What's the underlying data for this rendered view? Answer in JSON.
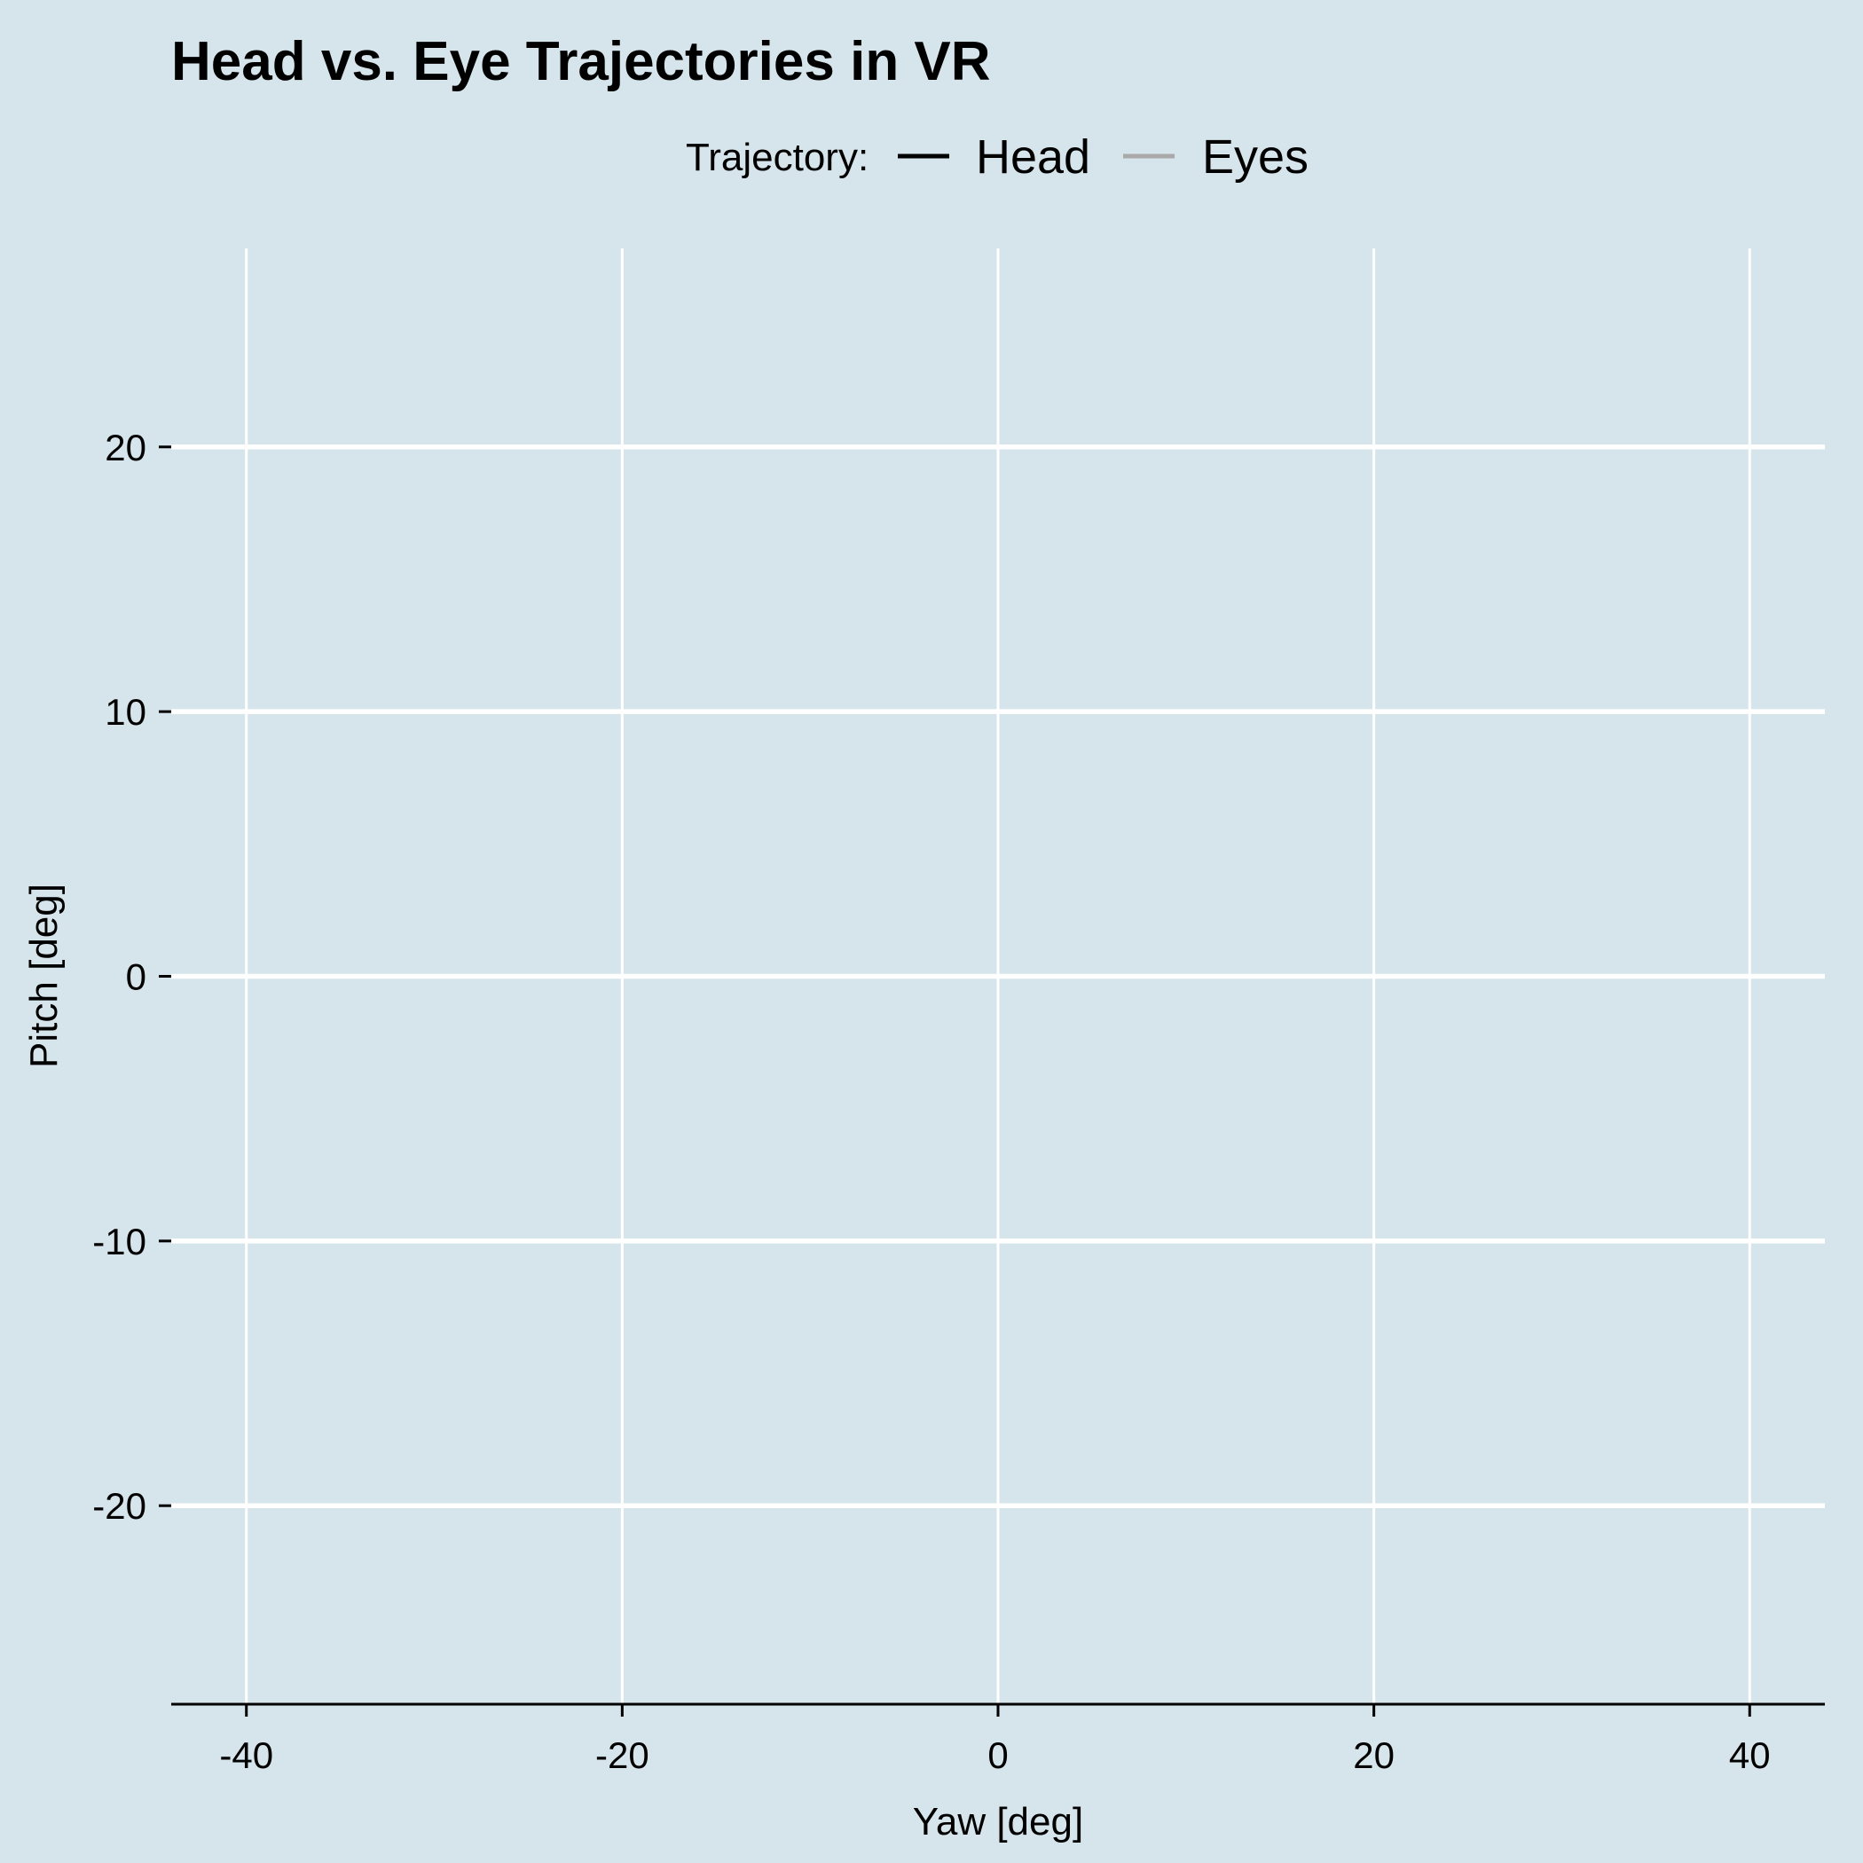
{
  "chart_data": {
    "type": "line",
    "title": "Head vs. Eye Trajectories in VR",
    "xlabel": "Yaw [deg]",
    "ylabel": "Pitch [deg]",
    "xlim": [
      -44,
      44
    ],
    "ylim": [
      -27.5,
      27.5
    ],
    "x_ticks": [
      -40,
      -20,
      0,
      20,
      40
    ],
    "y_ticks": [
      -20,
      -10,
      0,
      10,
      20
    ],
    "x_tick_labels": [
      "-40",
      "-20",
      "0",
      "20",
      "40"
    ],
    "y_tick_labels": [
      "-20",
      "-10",
      "0",
      "10",
      "20"
    ],
    "grid": true,
    "legend": {
      "title": "Trajectory:",
      "position": "top",
      "entries": [
        {
          "name": "Head",
          "color": "#000000"
        },
        {
          "name": "Eyes",
          "color": "#a9a9a9"
        }
      ]
    },
    "series": [
      {
        "name": "Head",
        "color": "#000000",
        "x": [],
        "y": []
      },
      {
        "name": "Eyes",
        "color": "#a9a9a9",
        "x": [],
        "y": []
      }
    ]
  },
  "colors": {
    "background": "#d6e4eb",
    "grid": "#ffffff",
    "axis": "#000000"
  }
}
